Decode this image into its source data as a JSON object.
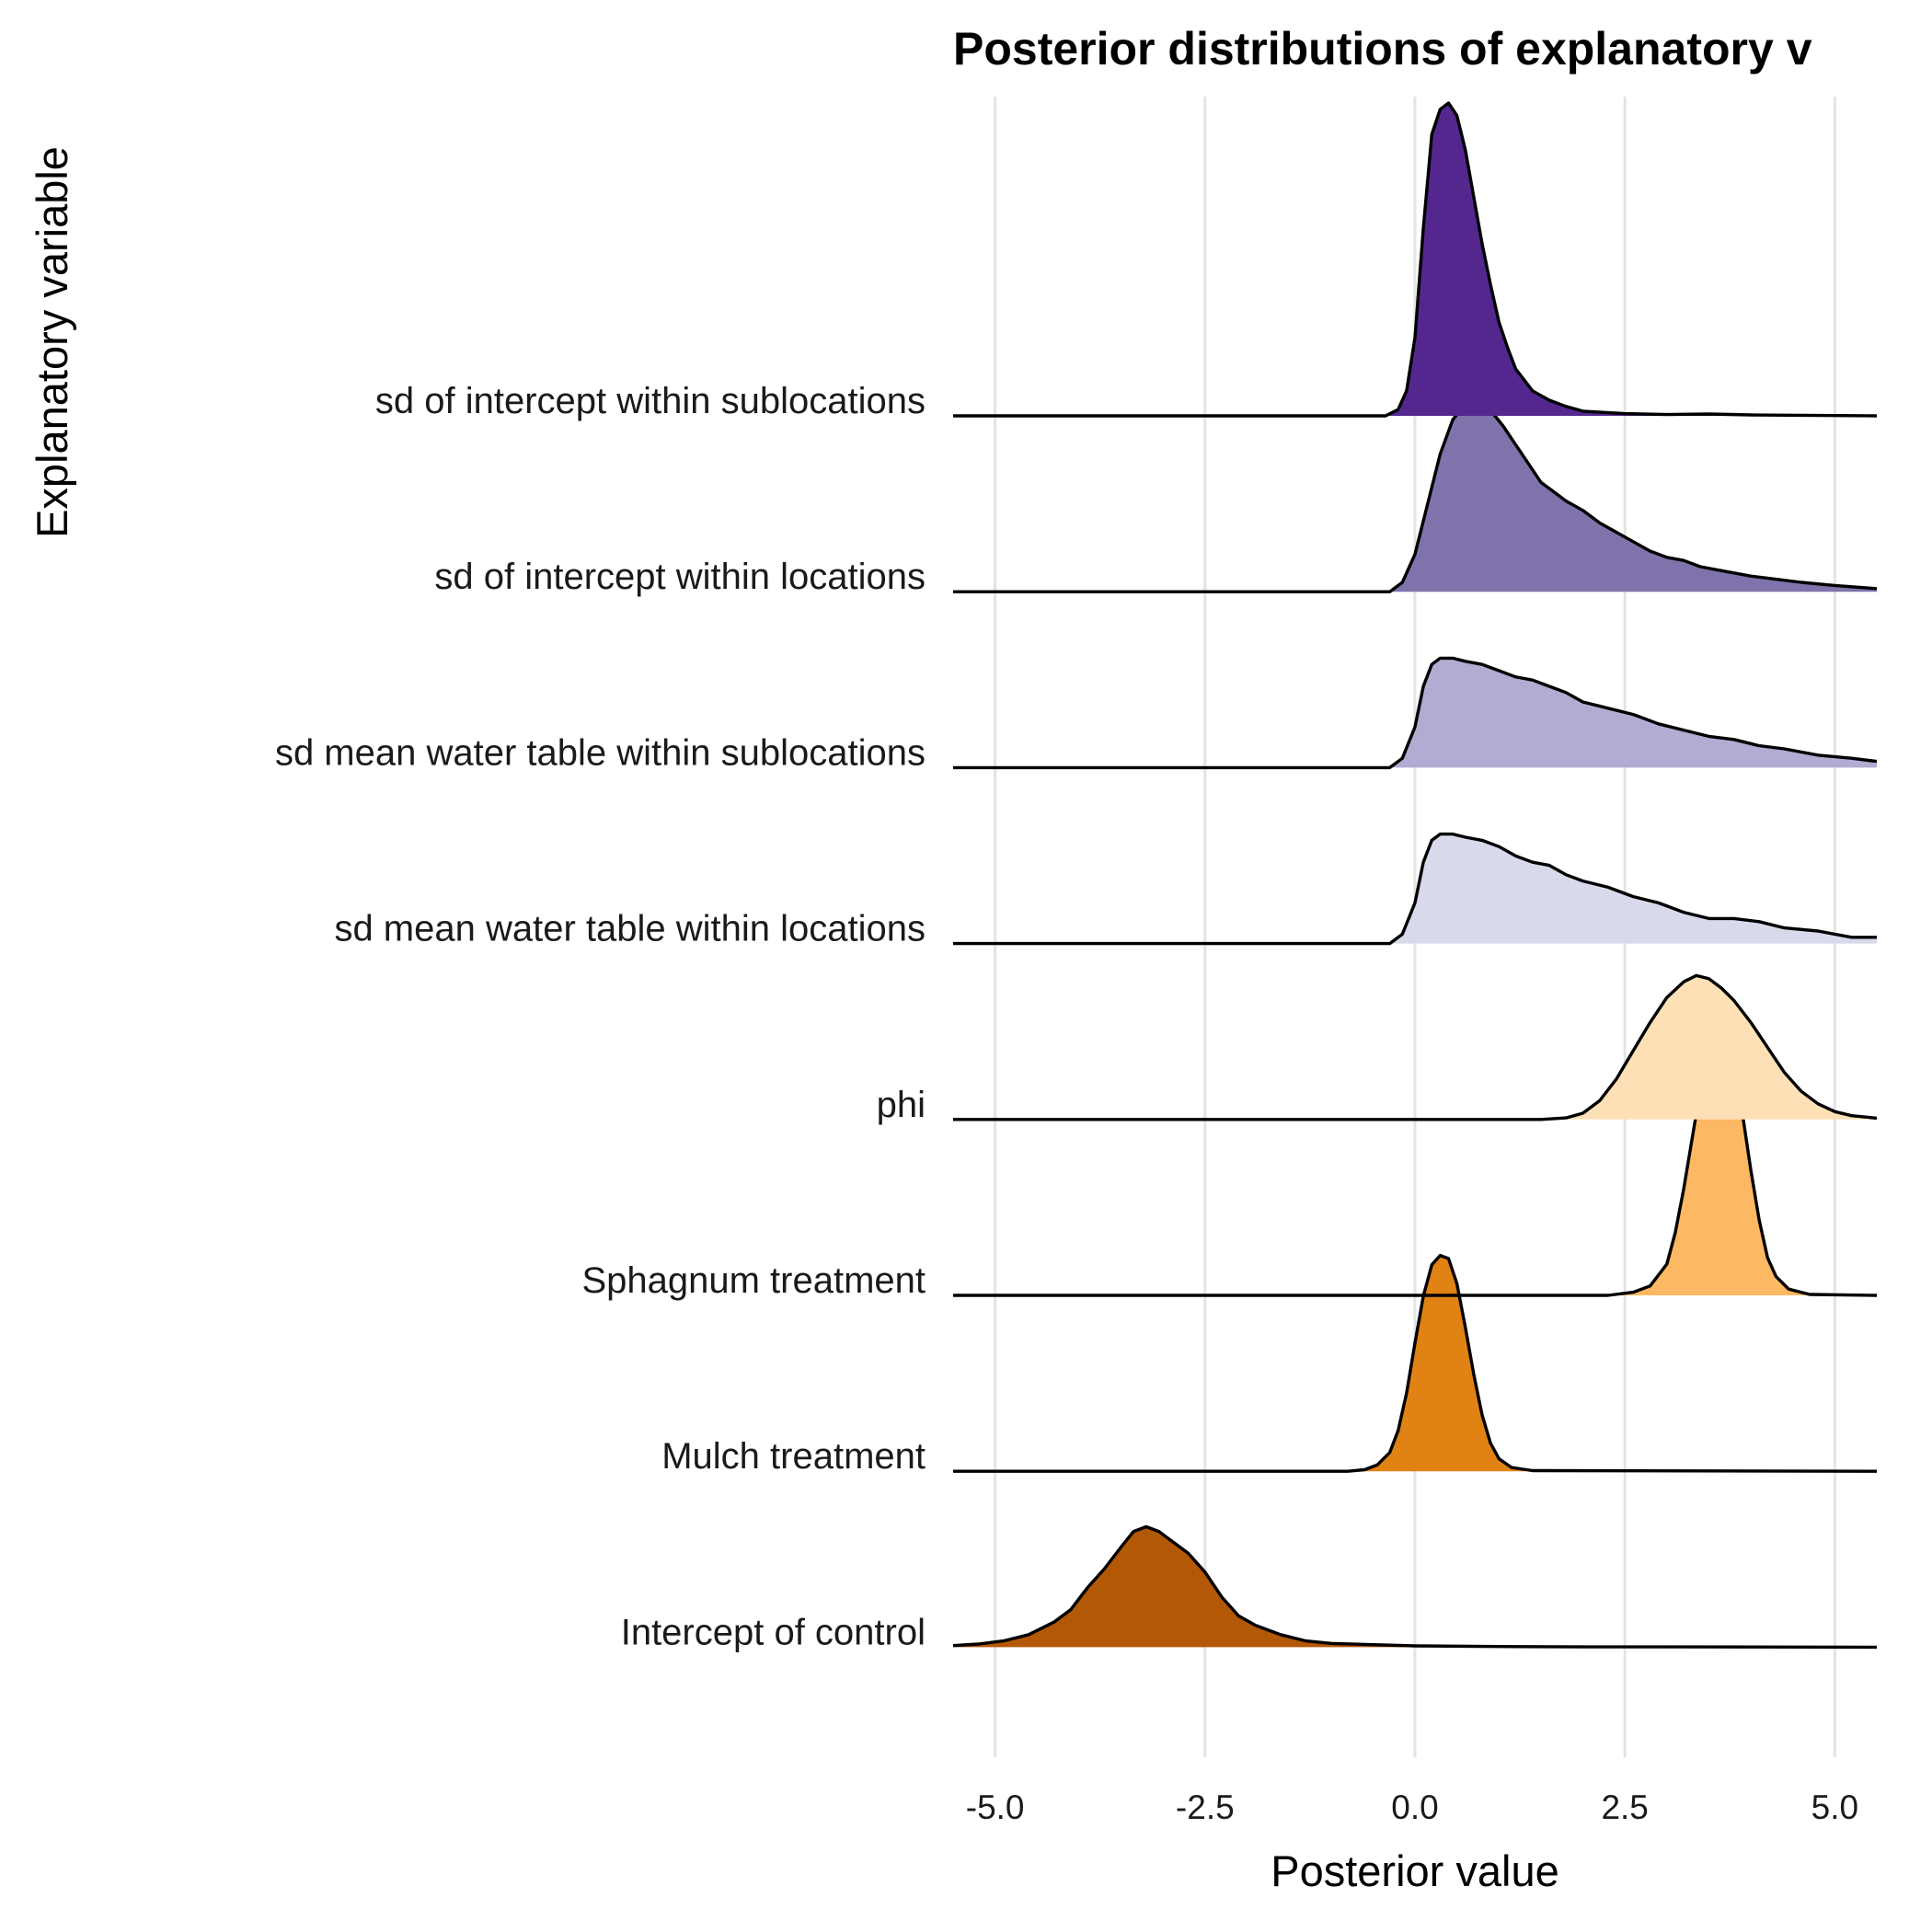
{
  "chart_data": {
    "type": "ridgeline",
    "title": "Posterior distributions of explanatory v",
    "xlabel": "Posterior value",
    "ylabel": "Explanatory variable",
    "xlim": [
      -5.5,
      5.5
    ],
    "xticks": [
      -5,
      -2.5,
      0,
      2.5,
      5
    ],
    "xtick_labels": [
      "-5.0",
      "-2.5",
      "0.0",
      "2.5",
      "5.0"
    ],
    "grid": "vertical major only",
    "legend": "none",
    "series": [
      {
        "name": "sd of intercept within sublocations",
        "color": "#54278f",
        "points": [
          [
            -5.5,
            0
          ],
          [
            -0.35,
            0
          ],
          [
            -0.2,
            0.02
          ],
          [
            -0.1,
            0.08
          ],
          [
            0,
            0.25
          ],
          [
            0.1,
            0.6
          ],
          [
            0.2,
            0.9
          ],
          [
            0.3,
            0.98
          ],
          [
            0.4,
            1.0
          ],
          [
            0.5,
            0.96
          ],
          [
            0.6,
            0.85
          ],
          [
            0.7,
            0.7
          ],
          [
            0.8,
            0.55
          ],
          [
            0.9,
            0.42
          ],
          [
            1.0,
            0.3
          ],
          [
            1.1,
            0.22
          ],
          [
            1.2,
            0.15
          ],
          [
            1.4,
            0.08
          ],
          [
            1.6,
            0.05
          ],
          [
            1.8,
            0.03
          ],
          [
            2.0,
            0.015
          ],
          [
            2.5,
            0.007
          ],
          [
            3.0,
            0.004
          ],
          [
            3.5,
            0.006
          ],
          [
            4.0,
            0.003
          ],
          [
            5.5,
            0
          ]
        ]
      },
      {
        "name": "sd of intercept within locations",
        "color": "#8073ac",
        "points": [
          [
            -5.5,
            0
          ],
          [
            -0.3,
            0
          ],
          [
            -0.15,
            0.03
          ],
          [
            0,
            0.12
          ],
          [
            0.15,
            0.28
          ],
          [
            0.3,
            0.44
          ],
          [
            0.45,
            0.55
          ],
          [
            0.6,
            0.6
          ],
          [
            0.75,
            0.61
          ],
          [
            0.9,
            0.58
          ],
          [
            1.05,
            0.53
          ],
          [
            1.2,
            0.47
          ],
          [
            1.35,
            0.41
          ],
          [
            1.5,
            0.35
          ],
          [
            1.65,
            0.32
          ],
          [
            1.8,
            0.29
          ],
          [
            2.0,
            0.26
          ],
          [
            2.2,
            0.22
          ],
          [
            2.4,
            0.19
          ],
          [
            2.6,
            0.16
          ],
          [
            2.8,
            0.13
          ],
          [
            3.0,
            0.11
          ],
          [
            3.2,
            0.1
          ],
          [
            3.4,
            0.08
          ],
          [
            3.6,
            0.07
          ],
          [
            3.8,
            0.06
          ],
          [
            4.0,
            0.05
          ],
          [
            4.3,
            0.04
          ],
          [
            4.6,
            0.03
          ],
          [
            5.0,
            0.02
          ],
          [
            5.5,
            0.01
          ]
        ]
      },
      {
        "name": "sd mean water table within sublocations",
        "color": "#b2abd2",
        "points": [
          [
            -5.5,
            0
          ],
          [
            -0.3,
            0
          ],
          [
            -0.15,
            0.03
          ],
          [
            0,
            0.13
          ],
          [
            0.1,
            0.26
          ],
          [
            0.2,
            0.33
          ],
          [
            0.3,
            0.35
          ],
          [
            0.45,
            0.35
          ],
          [
            0.6,
            0.34
          ],
          [
            0.8,
            0.33
          ],
          [
            1.0,
            0.31
          ],
          [
            1.2,
            0.29
          ],
          [
            1.4,
            0.28
          ],
          [
            1.6,
            0.26
          ],
          [
            1.8,
            0.24
          ],
          [
            2.0,
            0.21
          ],
          [
            2.3,
            0.19
          ],
          [
            2.6,
            0.17
          ],
          [
            2.9,
            0.14
          ],
          [
            3.2,
            0.12
          ],
          [
            3.5,
            0.1
          ],
          [
            3.8,
            0.09
          ],
          [
            4.1,
            0.07
          ],
          [
            4.4,
            0.06
          ],
          [
            4.8,
            0.04
          ],
          [
            5.2,
            0.03
          ],
          [
            5.5,
            0.02
          ]
        ]
      },
      {
        "name": "sd mean water table within locations",
        "color": "#d8daeb",
        "points": [
          [
            -5.5,
            0
          ],
          [
            -0.3,
            0
          ],
          [
            -0.15,
            0.03
          ],
          [
            0,
            0.13
          ],
          [
            0.1,
            0.26
          ],
          [
            0.2,
            0.33
          ],
          [
            0.3,
            0.35
          ],
          [
            0.45,
            0.35
          ],
          [
            0.6,
            0.34
          ],
          [
            0.8,
            0.33
          ],
          [
            1.0,
            0.31
          ],
          [
            1.2,
            0.28
          ],
          [
            1.4,
            0.26
          ],
          [
            1.6,
            0.25
          ],
          [
            1.8,
            0.22
          ],
          [
            2.0,
            0.2
          ],
          [
            2.3,
            0.18
          ],
          [
            2.6,
            0.15
          ],
          [
            2.9,
            0.13
          ],
          [
            3.2,
            0.1
          ],
          [
            3.5,
            0.08
          ],
          [
            3.8,
            0.08
          ],
          [
            4.1,
            0.07
          ],
          [
            4.4,
            0.05
          ],
          [
            4.8,
            0.04
          ],
          [
            5.2,
            0.02
          ],
          [
            5.5,
            0.02
          ]
        ]
      },
      {
        "name": "phi",
        "color": "#fee0b6",
        "points": [
          [
            -5.5,
            0
          ],
          [
            1.5,
            0
          ],
          [
            1.8,
            0.005
          ],
          [
            2.0,
            0.02
          ],
          [
            2.2,
            0.06
          ],
          [
            2.4,
            0.13
          ],
          [
            2.6,
            0.22
          ],
          [
            2.8,
            0.31
          ],
          [
            3.0,
            0.39
          ],
          [
            3.2,
            0.44
          ],
          [
            3.35,
            0.46
          ],
          [
            3.5,
            0.45
          ],
          [
            3.65,
            0.42
          ],
          [
            3.8,
            0.38
          ],
          [
            4.0,
            0.31
          ],
          [
            4.2,
            0.23
          ],
          [
            4.4,
            0.15
          ],
          [
            4.6,
            0.09
          ],
          [
            4.8,
            0.05
          ],
          [
            5.0,
            0.025
          ],
          [
            5.2,
            0.012
          ],
          [
            5.5,
            0.004
          ]
        ]
      },
      {
        "name": "Sphagnum treatment",
        "color": "#fdb863",
        "points": [
          [
            -5.5,
            0
          ],
          [
            2.3,
            0
          ],
          [
            2.6,
            0.01
          ],
          [
            2.8,
            0.03
          ],
          [
            3.0,
            0.1
          ],
          [
            3.1,
            0.2
          ],
          [
            3.2,
            0.34
          ],
          [
            3.3,
            0.5
          ],
          [
            3.4,
            0.66
          ],
          [
            3.5,
            0.8
          ],
          [
            3.6,
            0.86
          ],
          [
            3.7,
            0.84
          ],
          [
            3.8,
            0.74
          ],
          [
            3.9,
            0.58
          ],
          [
            4.0,
            0.4
          ],
          [
            4.1,
            0.24
          ],
          [
            4.2,
            0.12
          ],
          [
            4.3,
            0.06
          ],
          [
            4.45,
            0.02
          ],
          [
            4.7,
            0.003
          ],
          [
            5.5,
            0
          ]
        ]
      },
      {
        "name": "Mulch treatment",
        "color": "#e08214",
        "points": [
          [
            -5.5,
            0
          ],
          [
            -0.8,
            0
          ],
          [
            -0.6,
            0.005
          ],
          [
            -0.45,
            0.02
          ],
          [
            -0.3,
            0.06
          ],
          [
            -0.2,
            0.13
          ],
          [
            -0.1,
            0.25
          ],
          [
            0,
            0.41
          ],
          [
            0.1,
            0.56
          ],
          [
            0.2,
            0.66
          ],
          [
            0.3,
            0.69
          ],
          [
            0.4,
            0.68
          ],
          [
            0.5,
            0.6
          ],
          [
            0.6,
            0.46
          ],
          [
            0.7,
            0.31
          ],
          [
            0.8,
            0.18
          ],
          [
            0.9,
            0.09
          ],
          [
            1.0,
            0.04
          ],
          [
            1.15,
            0.012
          ],
          [
            1.4,
            0.002
          ],
          [
            5.5,
            0
          ]
        ]
      },
      {
        "name": "Intercept of control",
        "color": "#b35806",
        "points": [
          [
            -5.5,
            0.005
          ],
          [
            -5.2,
            0.01
          ],
          [
            -4.9,
            0.02
          ],
          [
            -4.6,
            0.04
          ],
          [
            -4.3,
            0.08
          ],
          [
            -4.1,
            0.12
          ],
          [
            -3.9,
            0.19
          ],
          [
            -3.7,
            0.25
          ],
          [
            -3.5,
            0.32
          ],
          [
            -3.35,
            0.37
          ],
          [
            -3.2,
            0.385
          ],
          [
            -3.05,
            0.37
          ],
          [
            -2.9,
            0.34
          ],
          [
            -2.7,
            0.3
          ],
          [
            -2.5,
            0.24
          ],
          [
            -2.3,
            0.16
          ],
          [
            -2.1,
            0.1
          ],
          [
            -1.9,
            0.07
          ],
          [
            -1.6,
            0.04
          ],
          [
            -1.3,
            0.02
          ],
          [
            -1.0,
            0.012
          ],
          [
            -0.5,
            0.008
          ],
          [
            0,
            0.004
          ],
          [
            1,
            0.002
          ],
          [
            2,
            0.001
          ],
          [
            3,
            0.001
          ],
          [
            5.5,
            0
          ]
        ]
      }
    ]
  }
}
